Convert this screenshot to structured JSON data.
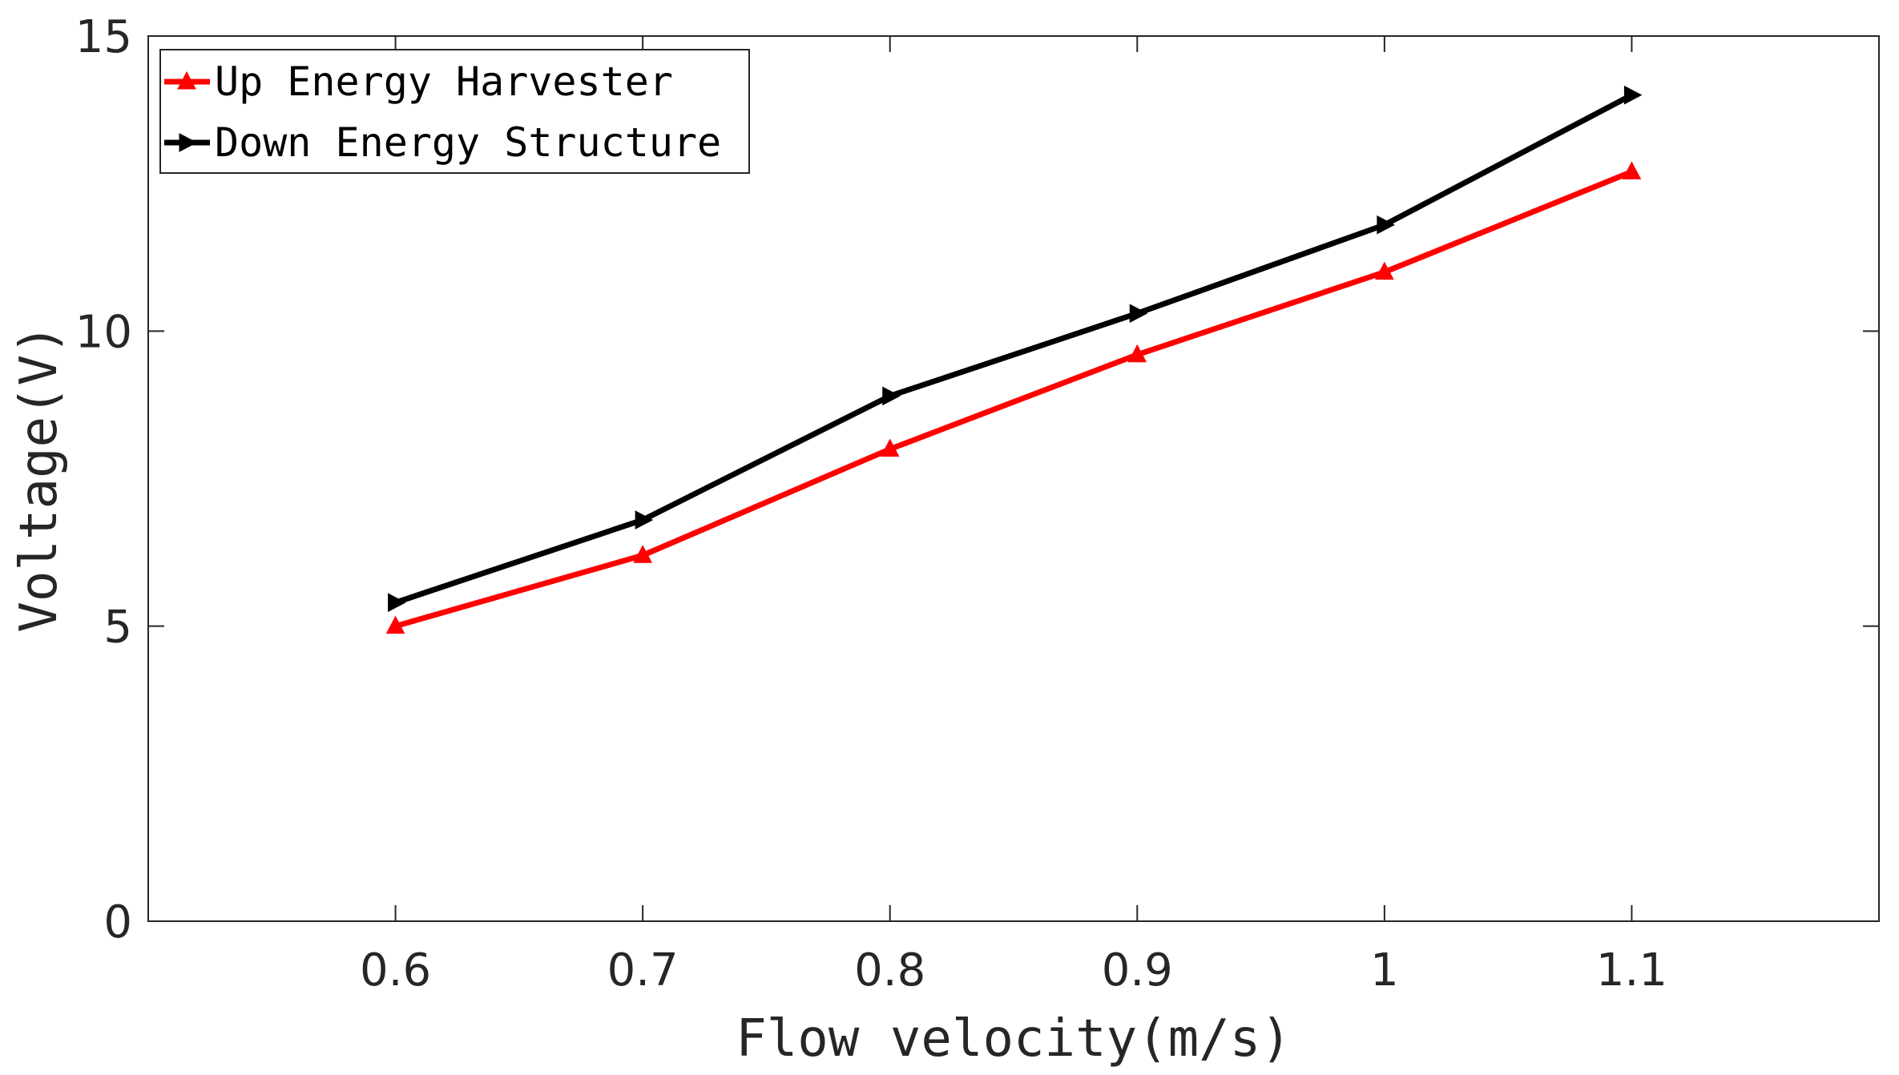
{
  "chart_data": {
    "type": "line",
    "title": "",
    "xlabel": "Flow velocity(m/s)",
    "ylabel": "Voltage(V)",
    "xlim": [
      0.5,
      1.2
    ],
    "ylim": [
      0,
      15
    ],
    "x": [
      0.6,
      0.7,
      0.8,
      0.9,
      1.0,
      1.1
    ],
    "xticks": [
      0.6,
      0.7,
      0.8,
      0.9,
      1.0,
      1.1
    ],
    "xtick_labels": [
      "0.6",
      "0.7",
      "0.8",
      "0.9",
      "1",
      "1.1"
    ],
    "yticks": [
      0,
      5,
      10,
      15
    ],
    "ytick_labels": [
      "0",
      "5",
      "10",
      "15"
    ],
    "grid": false,
    "legend_position": "top-left",
    "series": [
      {
        "name": "Up Energy Harvester",
        "color": "#ff0000",
        "marker": "triangle-up",
        "values": [
          5.0,
          6.2,
          8.0,
          9.6,
          11.0,
          12.7
        ]
      },
      {
        "name": "Down Energy Structure",
        "color": "#000000",
        "marker": "triangle-right",
        "values": [
          5.4,
          6.8,
          8.9,
          10.3,
          11.8,
          14.0
        ]
      }
    ]
  }
}
